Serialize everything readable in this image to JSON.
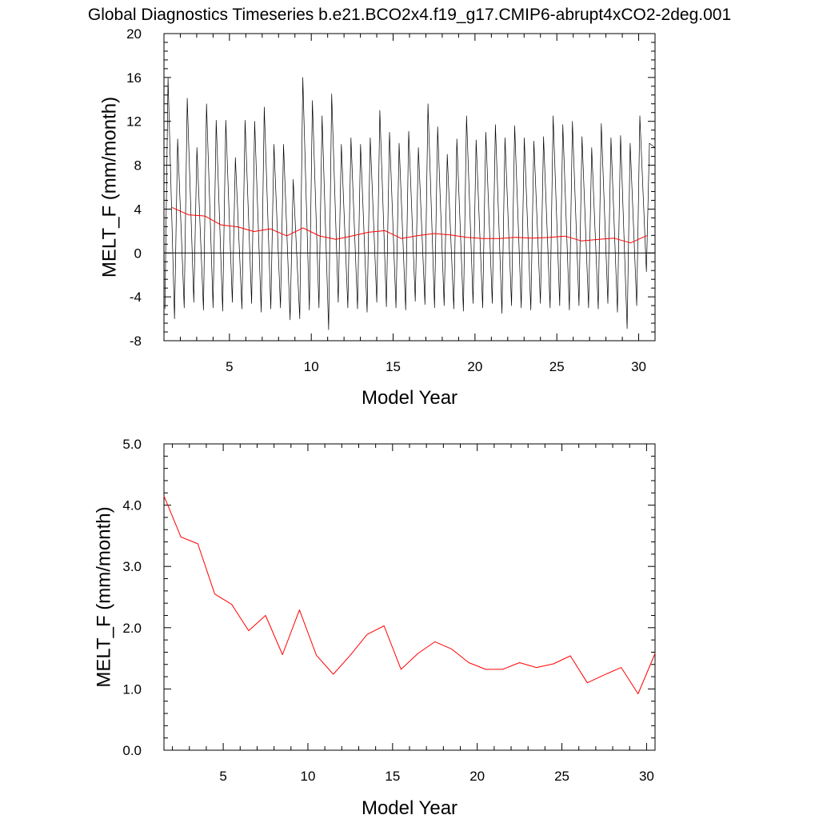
{
  "figure_title": "Global Diagnostics Timeseries b.e21.BCO2x4.f19_g17.CMIP6-abrupt4xCO2-2deg.001",
  "colors": {
    "monthly": "#000000",
    "annual": "#ff0000",
    "axis": "#000000"
  },
  "chart_data": [
    {
      "type": "line",
      "xlabel": "Model Year",
      "ylabel": "MELT_F (mm/month)",
      "xlim": [
        1,
        31
      ],
      "ylim": [
        -8,
        20
      ],
      "xticks": [
        5,
        10,
        15,
        20,
        25,
        30
      ],
      "yticks": [
        -8,
        -4,
        0,
        4,
        8,
        12,
        16,
        20
      ],
      "ytick_labels": [
        "-8",
        "-4",
        "0",
        "4",
        "8",
        "12",
        "16",
        "20"
      ],
      "zero_line": true,
      "series": [
        {
          "key": "monthly",
          "style": "black thin line, monthly values",
          "peaks": [
            16.0,
            10.4,
            14.1,
            9.6,
            13.6,
            12.1,
            12.1,
            8.7,
            12.1,
            12.0,
            13.3,
            9.9,
            9.9,
            6.7,
            16.0,
            13.9,
            12.5,
            14.5,
            9.9,
            10.5,
            9.9,
            10.5,
            13.0,
            11.0,
            10.0,
            11.1,
            9.6,
            13.6,
            11.5,
            9.0,
            10.4,
            12.5,
            10.3,
            11.0,
            11.7,
            10.5,
            11.6,
            10.5,
            10.2,
            10.6,
            12.5,
            11.7,
            12.0,
            10.6,
            9.6,
            11.8,
            10.5,
            10.7,
            10.0,
            12.5,
            10.0
          ],
          "troughs": [
            -5.1,
            -6.0,
            -5.0,
            -4.5,
            -5.2,
            -5.0,
            -5.3,
            -4.5,
            -5.1,
            -4.6,
            -5.4,
            -5.1,
            -5.0,
            -6.1,
            -6.0,
            -5.2,
            -5.0,
            -7.0,
            -4.5,
            -5.0,
            -5.1,
            -5.4,
            -4.5,
            -4.9,
            -5.0,
            -5.2,
            -4.4,
            -4.7,
            -5.0,
            -4.8,
            -5.1,
            -5.3,
            -4.6,
            -5.0,
            -4.6,
            -5.5,
            -4.8,
            -5.0,
            -5.2,
            -4.6,
            -5.0,
            -4.8,
            -5.2,
            -4.8,
            -5.0,
            -5.1,
            -4.6,
            -5.4,
            -6.9,
            -4.8,
            -1.7
          ]
        },
        {
          "key": "annual",
          "style": "red line, annual means",
          "x": [
            1.5,
            2.5,
            3.5,
            4.5,
            5.5,
            6.5,
            7.5,
            8.5,
            9.5,
            10.5,
            11.5,
            12.5,
            13.5,
            14.5,
            15.5,
            16.5,
            17.5,
            18.5,
            19.5,
            20.5,
            21.5,
            22.5,
            23.5,
            24.5,
            25.5,
            26.5,
            27.5,
            28.5,
            29.5,
            30.5
          ],
          "values": [
            4.15,
            3.48,
            3.37,
            2.55,
            2.38,
            1.95,
            2.2,
            1.56,
            2.29,
            1.55,
            1.24,
            1.55,
            1.89,
            2.03,
            1.32,
            1.58,
            1.77,
            1.65,
            1.43,
            1.32,
            1.32,
            1.43,
            1.35,
            1.41,
            1.54,
            1.1,
            1.23,
            1.35,
            0.92,
            1.58
          ]
        }
      ]
    },
    {
      "type": "line",
      "xlabel": "Model Year",
      "ylabel": "MELT_F (mm/month)",
      "xlim": [
        1.5,
        30.5
      ],
      "ylim": [
        0,
        5
      ],
      "xticks": [
        5,
        10,
        15,
        20,
        25,
        30
      ],
      "yticks": [
        0,
        1,
        2,
        3,
        4,
        5
      ],
      "ytick_labels": [
        "0.0",
        "1.0",
        "2.0",
        "3.0",
        "4.0",
        "5.0"
      ],
      "series": [
        {
          "key": "annual",
          "style": "red line, annual means",
          "x": [
            1.5,
            2.5,
            3.5,
            4.5,
            5.5,
            6.5,
            7.5,
            8.5,
            9.5,
            10.5,
            11.5,
            12.5,
            13.5,
            14.5,
            15.5,
            16.5,
            17.5,
            18.5,
            19.5,
            20.5,
            21.5,
            22.5,
            23.5,
            24.5,
            25.5,
            26.5,
            27.5,
            28.5,
            29.5,
            30.5
          ],
          "values": [
            4.15,
            3.48,
            3.37,
            2.55,
            2.38,
            1.95,
            2.2,
            1.56,
            2.29,
            1.55,
            1.24,
            1.55,
            1.89,
            2.03,
            1.32,
            1.58,
            1.77,
            1.65,
            1.43,
            1.32,
            1.32,
            1.43,
            1.35,
            1.41,
            1.54,
            1.1,
            1.23,
            1.35,
            0.92,
            1.58
          ]
        }
      ]
    }
  ]
}
